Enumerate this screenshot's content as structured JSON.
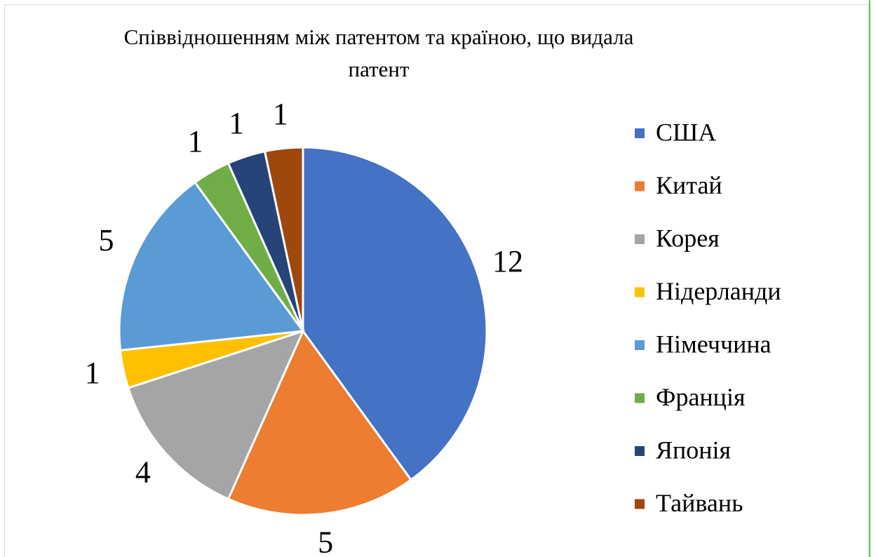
{
  "chart_data": {
    "type": "pie",
    "title": "Співвідношенням між патентом та країною, що видала патент",
    "categories": [
      "США",
      "Китай",
      "Корея",
      "Нідерланди",
      "Німеччина",
      "Франція",
      "Японія",
      "Тайвань"
    ],
    "values": [
      12,
      5,
      4,
      1,
      5,
      1,
      1,
      1
    ],
    "colors": [
      "#4472c4",
      "#ed7d31",
      "#a5a5a5",
      "#ffc000",
      "#5b9bd5",
      "#70ad47",
      "#264478",
      "#9e480e"
    ],
    "legend": "right"
  }
}
